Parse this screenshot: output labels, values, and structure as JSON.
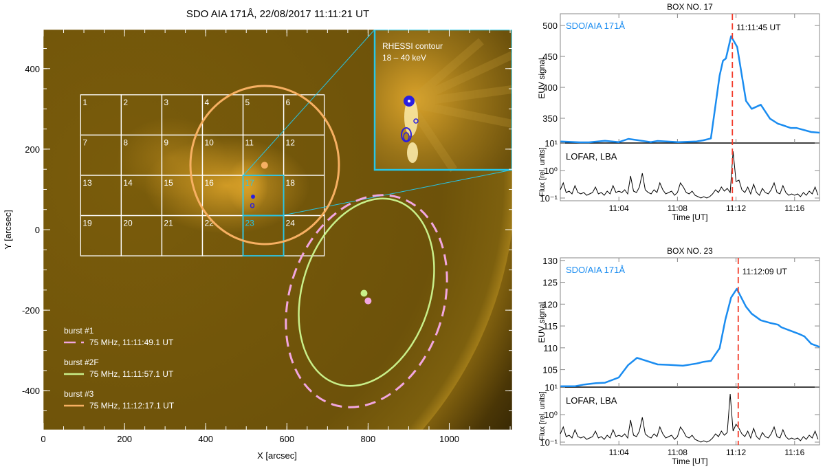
{
  "chart_data": [
    {
      "type": "image",
      "title": "SDO AIA 171Å, 22/08/2017 11:11:21 UT",
      "xlabel": "X [arcsec]",
      "ylabel": "Y [arcsec]",
      "xlim": [
        0,
        1155
      ],
      "ylim": [
        -497,
        497
      ],
      "xticks": [
        "0",
        "200",
        "400",
        "600",
        "800",
        "1000"
      ],
      "xtick_values": [
        0,
        200,
        400,
        600,
        800,
        1000
      ],
      "yticks": [
        "400",
        "200",
        "0",
        "-200",
        "-400"
      ],
      "ytick_values": [
        400,
        200,
        0,
        -200,
        -400
      ],
      "grid_boxes": {
        "labels": [
          "1",
          "2",
          "3",
          "4",
          "5",
          "6",
          "7",
          "8",
          "9",
          "10",
          "11",
          "12",
          "13",
          "14",
          "15",
          "16",
          "17",
          "18",
          "19",
          "20",
          "21",
          "22",
          "23",
          "24"
        ],
        "highlighted": [
          "17",
          "23"
        ],
        "x_range_arcsec": [
          92,
          692
        ],
        "y_range_arcsec": [
          335,
          -65
        ],
        "columns": 6,
        "rows": 4
      },
      "inset": {
        "label_line1": "RHESSI contour",
        "label_line2": "18 – 40 keV",
        "zoom_of_box": "17"
      },
      "legend": [
        {
          "title": "burst #1",
          "label": "75 MHz, 11:11:49.1 UT",
          "color": "#f2a6e0",
          "style": "dashed"
        },
        {
          "title": "burst #2F",
          "label": "75 MHz, 11:11:57.1 UT",
          "color": "#c9f08a",
          "style": "solid"
        },
        {
          "title": "burst #3",
          "label": "75 MHz, 11:12:17.1 UT",
          "color": "#f7b062",
          "style": "solid"
        }
      ],
      "sources": [
        {
          "name": "burst #3",
          "center": [
            545,
            160
          ],
          "color": "#f7b062"
        },
        {
          "name": "burst #2F",
          "center": [
            790,
            -158
          ],
          "color": "#c9f08a"
        },
        {
          "name": "burst #1",
          "center": [
            800,
            -177
          ],
          "color": "#f2a6e0"
        }
      ]
    },
    {
      "type": "line",
      "title": "BOX NO. 17",
      "series_label": "SDO/AIA 171Å",
      "ylabel": "EUV signal",
      "ylim": [
        310,
        519
      ],
      "yticks": [
        "500",
        "450",
        "400",
        "350"
      ],
      "ytick_values": [
        500,
        450,
        400,
        350
      ],
      "x_minutes_after_1100": [
        0.03,
        1.33,
        1.96,
        3.05,
        3.99,
        4.65,
        5.24,
        6.18,
        6.65,
        8.06,
        9.31,
        9.78,
        10.28,
        10.88,
        11.11,
        11.31,
        11.66,
        12.08,
        12.68,
        13.07,
        13.69,
        14.32,
        14.87,
        15.1,
        15.73,
        16.12,
        17.14,
        17.71
      ],
      "values": [
        312.6,
        311.1,
        311.1,
        313.7,
        311.5,
        316.7,
        314.8,
        311.5,
        313.3,
        311.5,
        312.6,
        314.4,
        317.4,
        418.9,
        443,
        446.7,
        482.6,
        465.2,
        378.1,
        365.2,
        371.9,
        349.3,
        341.1,
        339.6,
        334.4,
        334.4,
        327.8,
        326.7
      ],
      "marker_time_min": 11.75,
      "marker_label": "11:11:45 UT",
      "marker_color": "#f23b2a",
      "line_color": "#1a8cf0",
      "lofar": {
        "label": "LOFAR, LBA",
        "ylabel": "Flux [rel. units]",
        "yticks": [
          "10¹",
          "10⁰",
          "10⁻¹"
        ],
        "ytick_log_values": [
          1,
          0,
          -1
        ],
        "ylim_log": [
          -1.1,
          1
        ],
        "x_start_min": 0,
        "x_step_min": 0.2,
        "log10_values": [
          -0.7,
          -0.45,
          -0.8,
          -0.75,
          -0.85,
          -0.55,
          -0.8,
          -0.85,
          -0.8,
          -0.9,
          -0.85,
          -0.8,
          -0.6,
          -0.85,
          -0.8,
          -0.9,
          -0.75,
          -0.85,
          -0.55,
          -0.8,
          -0.75,
          -0.8,
          -0.7,
          -0.85,
          -0.2,
          -0.75,
          -0.8,
          -0.6,
          -0.1,
          -0.7,
          -0.8,
          -0.85,
          -0.7,
          -0.8,
          -0.45,
          -0.7,
          -0.85,
          -0.8,
          -0.75,
          -0.9,
          -0.8,
          -0.45,
          -0.6,
          -0.8,
          -0.85,
          -0.75,
          -0.9,
          -0.95,
          -1.0,
          -0.95,
          -1.0,
          -0.95,
          -0.85,
          -0.7,
          -0.8,
          -0.6,
          -0.75,
          -0.65,
          -0.8,
          0.7,
          -0.4,
          -0.35,
          -0.7,
          -0.8,
          -0.6,
          -0.85,
          -0.5,
          -0.8,
          -0.9,
          -0.65,
          -0.8,
          -0.85,
          -0.7,
          -0.45,
          -0.8,
          -0.85,
          -0.55,
          -0.8,
          -0.9,
          -0.85,
          -0.9,
          -0.85,
          -0.95,
          -0.8,
          -0.9,
          -0.75,
          -0.85,
          -0.6,
          -0.9
        ]
      },
      "xlabel": "Time [UT]",
      "xticks": [
        "11:04",
        "11:08",
        "11:12",
        "11:16"
      ],
      "xtick_values_min": [
        4,
        8,
        12,
        16
      ],
      "xlim_min": [
        0,
        17.7
      ]
    },
    {
      "type": "line",
      "title": "BOX NO. 23",
      "series_label": "SDO/AIA 171Å",
      "ylabel": "EUV signal",
      "ylim": [
        101,
        130.6
      ],
      "yticks": [
        "130",
        "125",
        "120",
        "115",
        "110",
        "105"
      ],
      "ytick_values": [
        130,
        125,
        120,
        115,
        110,
        105
      ],
      "x_minutes_after_1100": [
        0.03,
        1.02,
        1.64,
        2.43,
        3.05,
        3.99,
        4.62,
        5.24,
        6.65,
        7.43,
        8.37,
        9.31,
        9.78,
        10.28,
        10.88,
        11.27,
        11.66,
        12.05,
        12.68,
        13.07,
        13.69,
        14.32,
        14.87,
        15.1,
        15.73,
        16.35,
        16.67,
        17.14,
        17.71
      ],
      "values": [
        101.2,
        101.2,
        101.6,
        101.9,
        102.0,
        103.2,
        106.0,
        107.7,
        106.2,
        106.1,
        105.9,
        106.4,
        106.8,
        107.0,
        109.9,
        116.4,
        121.5,
        123.5,
        119.4,
        117.8,
        116.3,
        115.7,
        115.3,
        114.7,
        113.9,
        113.1,
        112.6,
        110.9,
        110.2
      ],
      "marker_time_min": 12.15,
      "marker_label": "11:12:09 UT",
      "marker_color": "#f23b2a",
      "line_color": "#1a8cf0",
      "lofar": {
        "label": "LOFAR, LBA",
        "ylabel": "Flux [rel. units]",
        "yticks": [
          "10¹",
          "10⁰",
          "10⁻¹"
        ],
        "ytick_log_values": [
          1,
          0,
          -1
        ],
        "ylim_log": [
          -1.1,
          1
        ],
        "x_start_min": 0,
        "x_step_min": 0.2,
        "log10_values": [
          -0.7,
          -0.45,
          -0.8,
          -0.75,
          -0.85,
          -0.55,
          -0.8,
          -0.85,
          -0.8,
          -0.9,
          -0.85,
          -0.8,
          -0.6,
          -0.85,
          -0.8,
          -0.9,
          -0.75,
          -0.85,
          -0.55,
          -0.8,
          -0.75,
          -0.8,
          -0.7,
          -0.85,
          -0.2,
          -0.75,
          -0.8,
          -0.6,
          -0.1,
          -0.7,
          -0.8,
          -0.85,
          -0.7,
          -0.8,
          -0.45,
          -0.7,
          -0.85,
          -0.8,
          -0.75,
          -0.9,
          -0.8,
          -0.45,
          -0.6,
          -0.8,
          -0.85,
          -0.75,
          -0.9,
          -0.95,
          -1.0,
          -0.95,
          -1.0,
          -0.95,
          -0.85,
          -0.7,
          -0.8,
          -0.6,
          -0.75,
          -0.65,
          0.75,
          -0.6,
          -0.35,
          -0.5,
          -0.7,
          -0.8,
          -0.6,
          -0.85,
          -0.5,
          -0.8,
          -0.9,
          -0.65,
          -0.8,
          -0.85,
          -0.7,
          -0.45,
          -0.8,
          -0.85,
          -0.55,
          -0.8,
          -0.9,
          -0.85,
          -0.9,
          -0.85,
          -0.95,
          -0.8,
          -0.9,
          -0.75,
          -0.85,
          -0.6,
          -0.9
        ]
      },
      "xlabel": "Time [UT]",
      "xticks": [
        "11:04",
        "11:08",
        "11:12",
        "11:16"
      ],
      "xtick_values_min": [
        4,
        8,
        12,
        16
      ],
      "xlim_min": [
        0,
        17.7
      ]
    }
  ]
}
